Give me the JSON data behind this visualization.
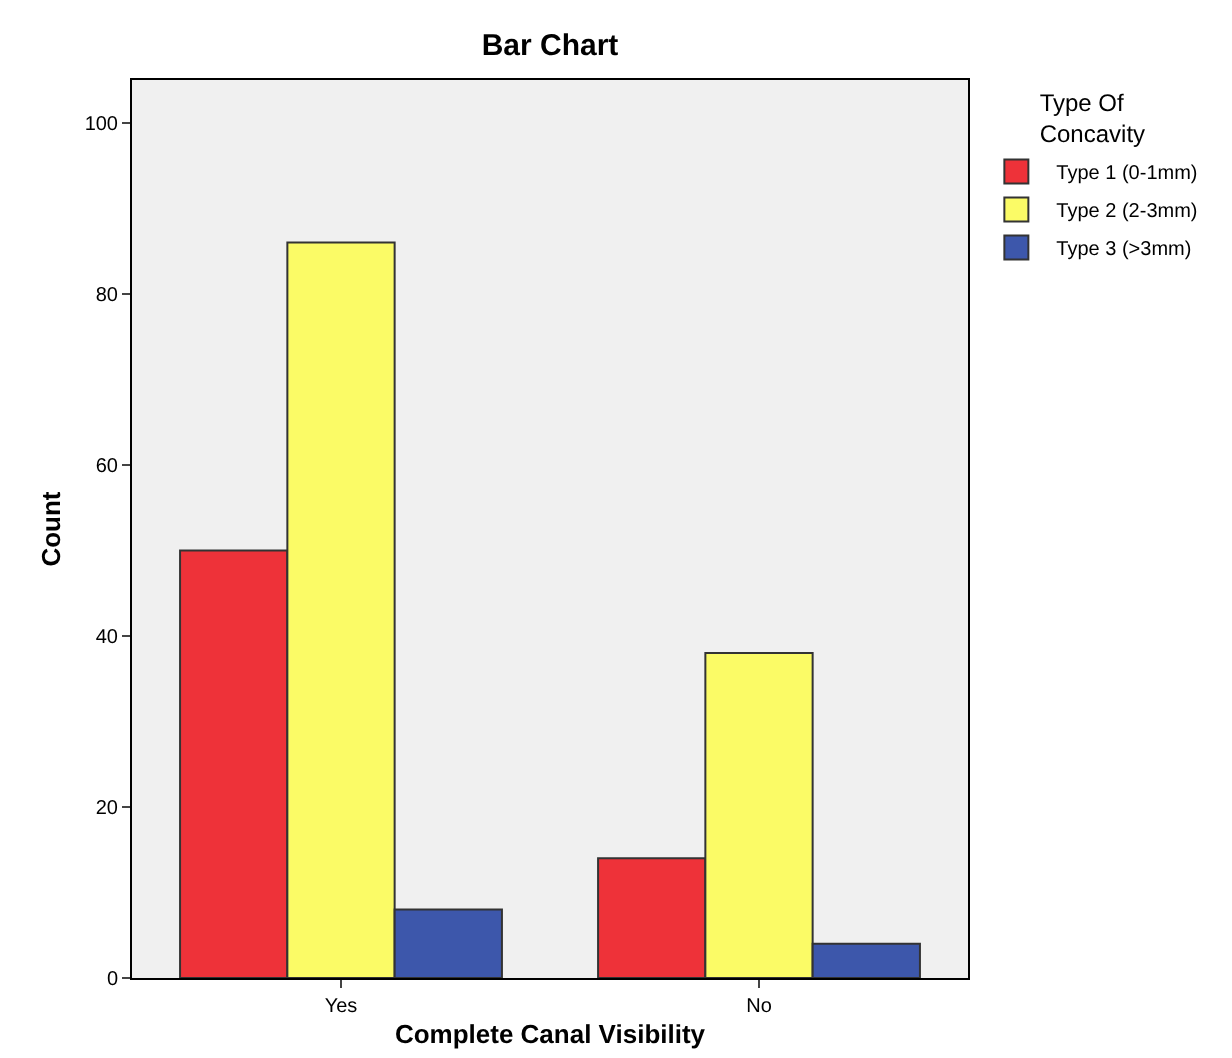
{
  "chart_data": {
    "type": "bar",
    "title": "Bar Chart",
    "xlabel": "Complete Canal Visibility",
    "ylabel": "Count",
    "legend_title": "Type Of Concavity",
    "categories": [
      "Yes",
      "No"
    ],
    "series": [
      {
        "name": "Type 1 (0-1mm)",
        "color": "#ee3239",
        "values": [
          50,
          14
        ]
      },
      {
        "name": "Type 2 (2-3mm)",
        "color": "#fbfb66",
        "values": [
          86,
          38
        ]
      },
      {
        "name": "Type 3 (>3mm)",
        "color": "#3d57ab",
        "values": [
          8,
          4
        ]
      }
    ],
    "ylim": [
      0,
      105
    ],
    "yticks": [
      0,
      20,
      40,
      60,
      80,
      100
    ],
    "grid": false,
    "legend": "top right"
  }
}
